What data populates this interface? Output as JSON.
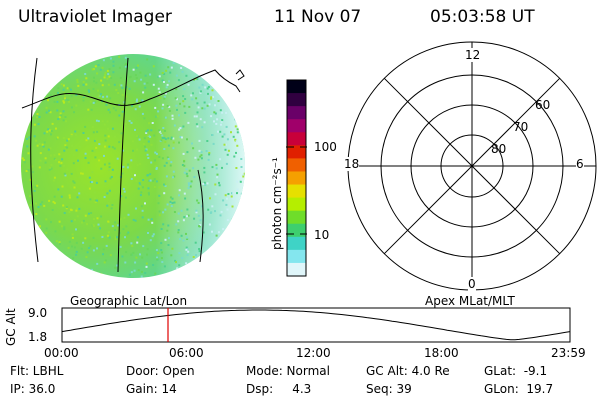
{
  "header": {
    "instrument": "Ultraviolet Imager",
    "date": "11 Nov 07",
    "time": "05:03:58 UT"
  },
  "image_panel": {
    "caption": "Geographic Lat/Lon"
  },
  "colorbar": {
    "label": "photon cm⁻²s⁻¹",
    "ticks": [
      "100",
      "10"
    ],
    "colors": [
      "#000018",
      "#300040",
      "#6a0068",
      "#a0006a",
      "#c8003a",
      "#e02000",
      "#f06000",
      "#f5a000",
      "#e6e000",
      "#b5ee00",
      "#6fdd2a",
      "#3ecf6e",
      "#3fd3c6",
      "#84e6ee",
      "#e0f6fa"
    ]
  },
  "polar_plot": {
    "caption": "Apex MLat/MLT",
    "mlt_labels": {
      "top": "12",
      "left": "18",
      "right": "6",
      "bottom": "0"
    },
    "lat_labels": [
      "60",
      "70",
      "80"
    ]
  },
  "timeline": {
    "y_label": "GC Alt",
    "y_ticks": [
      "9.0",
      "1.8"
    ],
    "x_ticks": [
      "00:00",
      "06:00",
      "12:00",
      "18:00",
      "23:59"
    ],
    "marker_time": "05:04"
  },
  "footer": {
    "row1": [
      {
        "text": "Flt: LBHL"
      },
      {
        "text": "Door: Open"
      },
      {
        "text": "Mode: Normal"
      },
      {
        "text": "GC Alt: 4.0 Re"
      },
      {
        "text": "GLat:  -9.1"
      }
    ],
    "row2": [
      {
        "text": "IP: 36.0"
      },
      {
        "text": "Gain: 14"
      },
      {
        "text": "Dsp:     4.3"
      },
      {
        "text": "Seq: 39"
      },
      {
        "text": "GLon:  19.7"
      }
    ]
  }
}
